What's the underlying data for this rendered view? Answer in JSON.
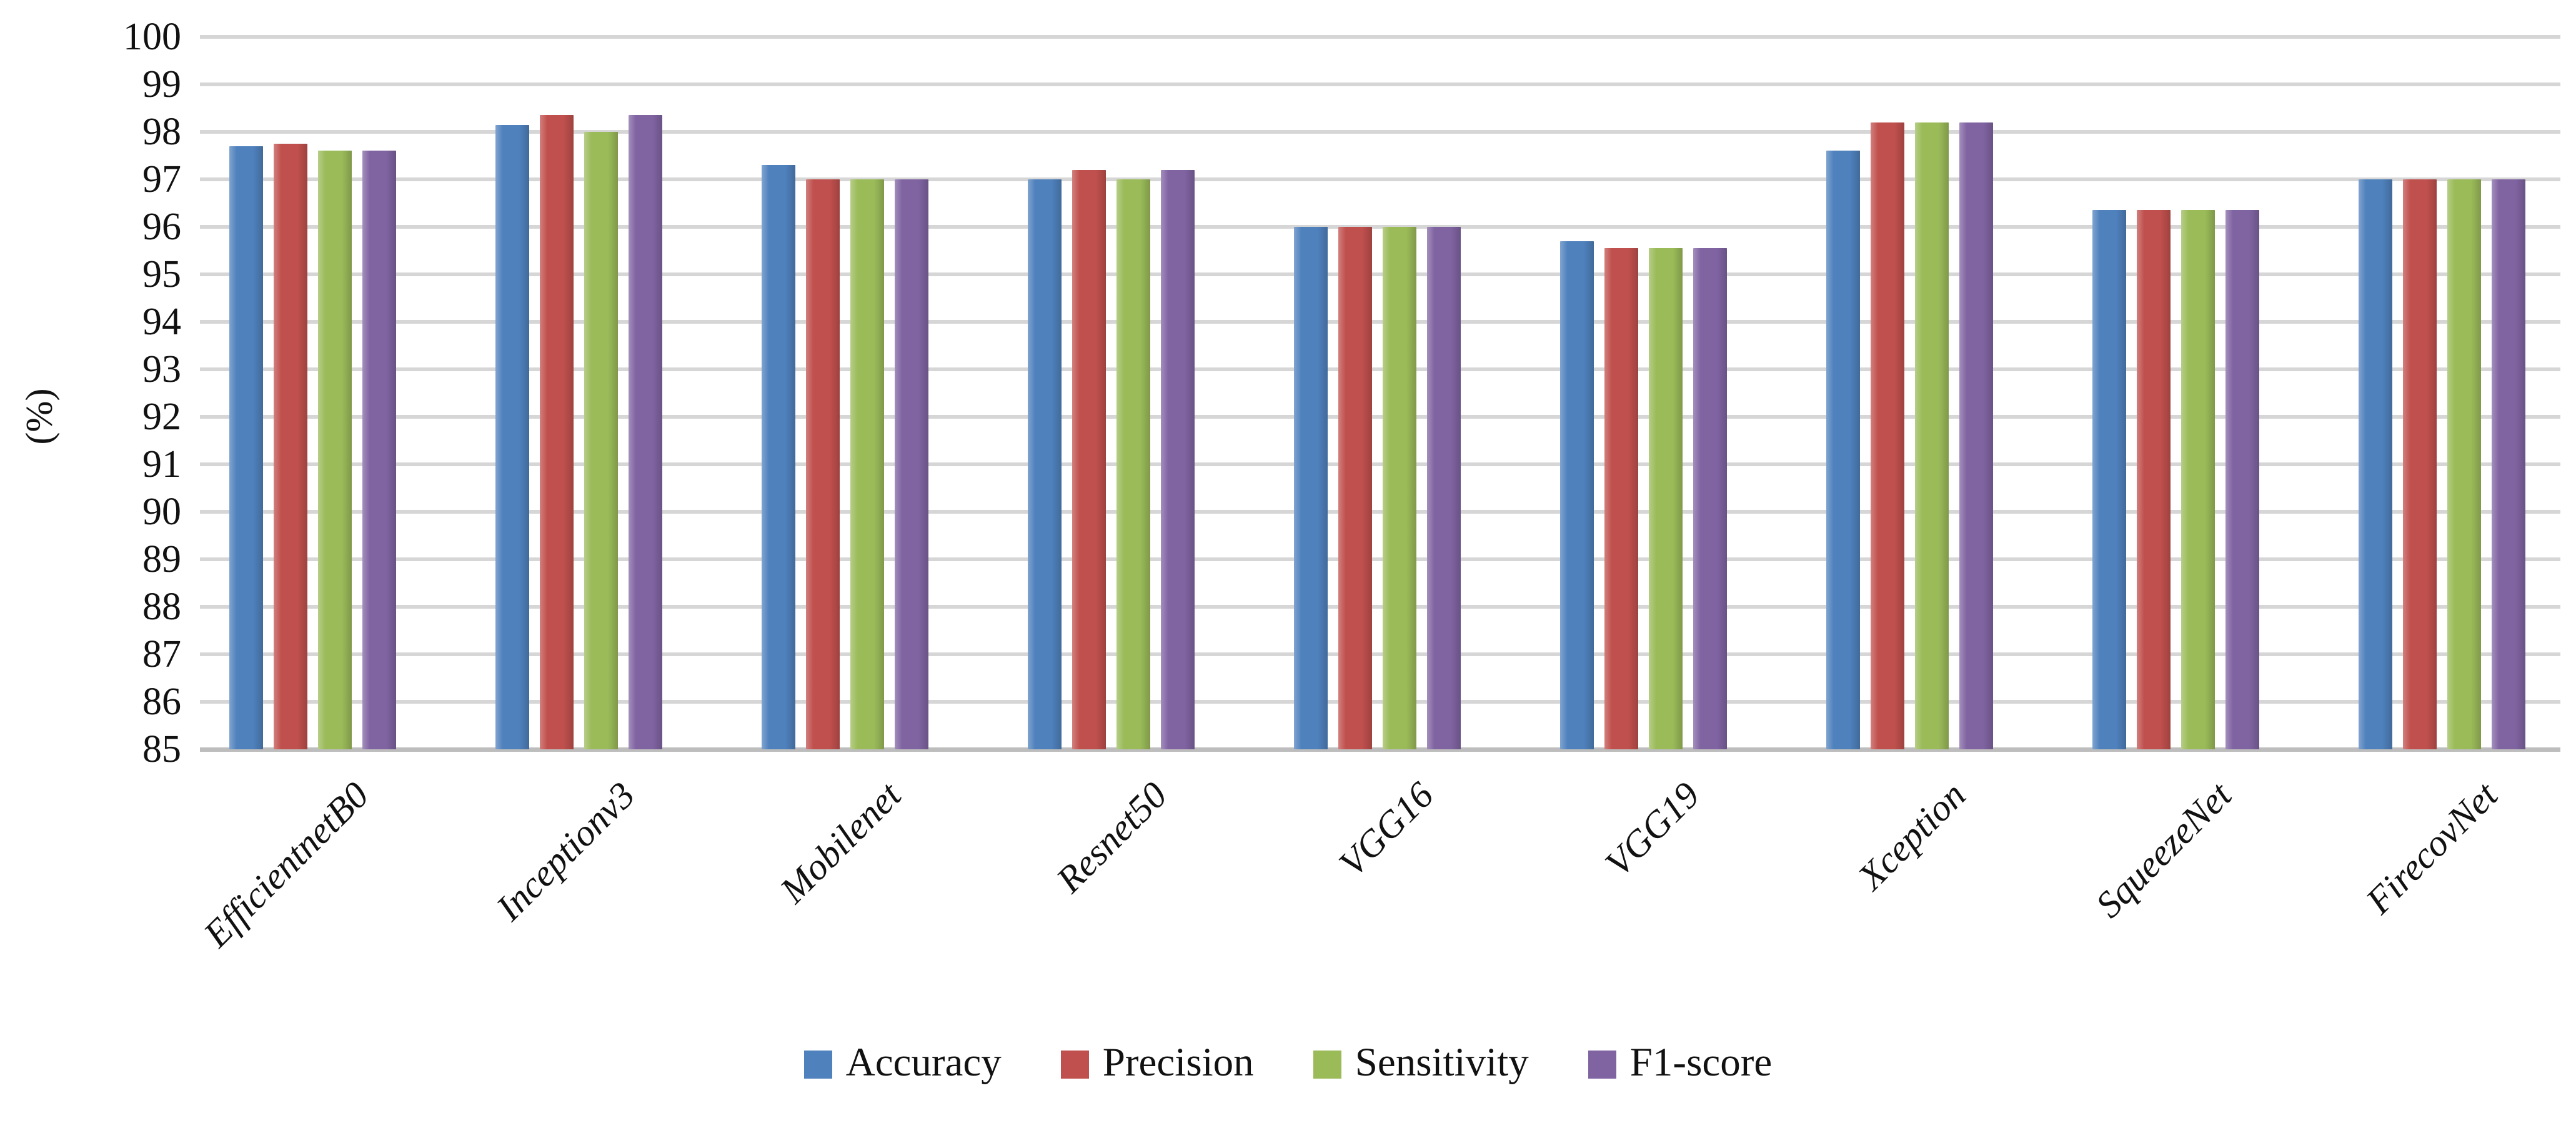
{
  "chart_data": {
    "type": "bar",
    "title": "",
    "xlabel": "",
    "ylabel": "(%)",
    "ylim": [
      85,
      100
    ],
    "ytick_step": 1,
    "yticks": [
      85,
      86,
      87,
      88,
      89,
      90,
      91,
      92,
      93,
      94,
      95,
      96,
      97,
      98,
      99,
      100
    ],
    "grid": true,
    "legend_position": "bottom",
    "categories": [
      "EfficientnetB0",
      "Inceptionv3",
      "Mobilenet",
      "Resnet50",
      "VGG16",
      "VGG19",
      "Xception",
      "SqueezeNet",
      "FirecovNet"
    ],
    "series": [
      {
        "name": "Accuracy",
        "color": "#4F81BD",
        "values": [
          97.7,
          98.15,
          97.3,
          97.0,
          96.0,
          95.7,
          97.6,
          96.35,
          97.0
        ]
      },
      {
        "name": "Precision",
        "color": "#C0504D",
        "values": [
          97.75,
          98.35,
          97.0,
          97.2,
          96.0,
          95.55,
          98.2,
          96.35,
          97.0
        ]
      },
      {
        "name": "Sensitivity",
        "color": "#9BBB59",
        "values": [
          97.6,
          98.0,
          97.0,
          97.0,
          96.0,
          95.55,
          98.2,
          96.35,
          97.0
        ]
      },
      {
        "name": "F1-score",
        "color": "#8064A2",
        "values": [
          97.6,
          98.35,
          97.0,
          97.2,
          96.0,
          95.55,
          98.2,
          96.35,
          97.0
        ]
      }
    ]
  },
  "colors": {
    "gridline": "#d6d6d6",
    "axis_line": "#bdbdbd",
    "text": "#111111",
    "background": "#ffffff"
  }
}
